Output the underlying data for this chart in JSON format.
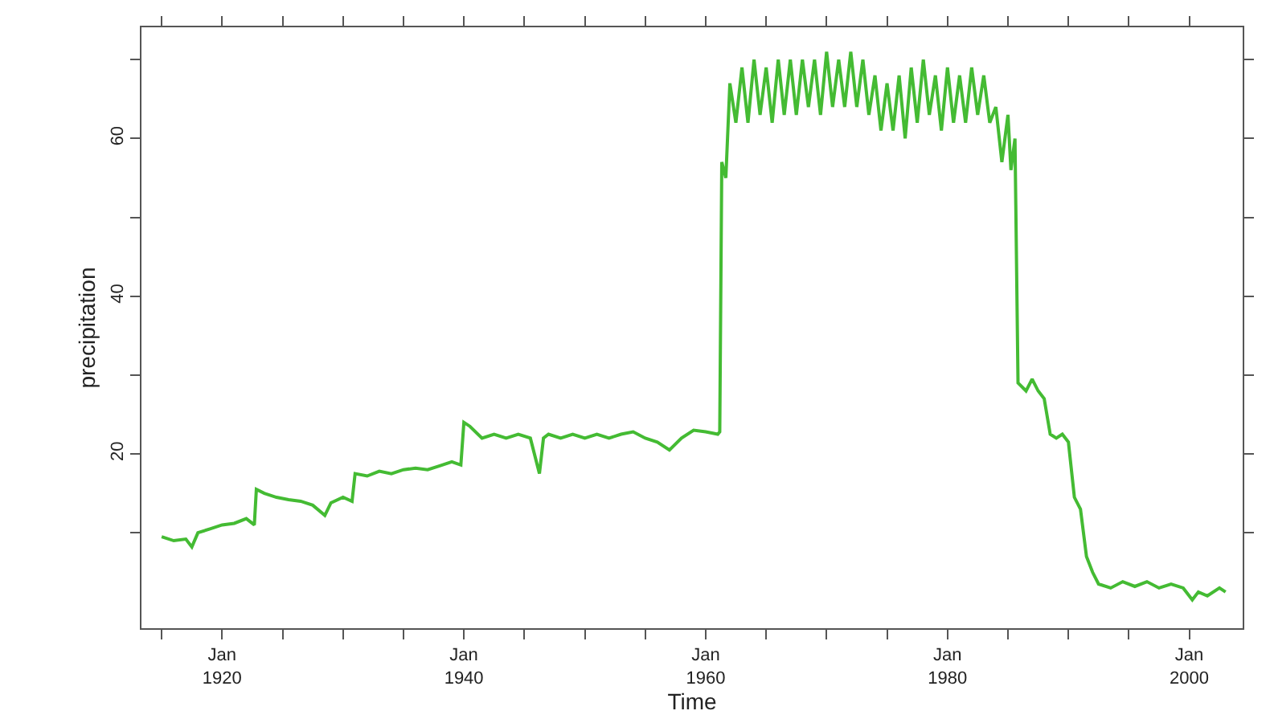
{
  "chart_data": {
    "type": "line",
    "xlabel": "Time",
    "ylabel": "precipitation",
    "xlim": [
      "1913-05",
      "2004-06"
    ],
    "ylim": [
      -2.1,
      74.1
    ],
    "xticks": [
      {
        "value": "1915-01",
        "label": null
      },
      {
        "value": "1920-01",
        "label": "Jan\n1920"
      },
      {
        "value": "1925-01",
        "label": null
      },
      {
        "value": "1930-01",
        "label": null
      },
      {
        "value": "1935-01",
        "label": null
      },
      {
        "value": "1940-01",
        "label": "Jan\n1940"
      },
      {
        "value": "1945-01",
        "label": null
      },
      {
        "value": "1950-01",
        "label": null
      },
      {
        "value": "1955-01",
        "label": null
      },
      {
        "value": "1960-01",
        "label": "Jan\n1960"
      },
      {
        "value": "1965-01",
        "label": null
      },
      {
        "value": "1970-01",
        "label": null
      },
      {
        "value": "1975-01",
        "label": null
      },
      {
        "value": "1980-01",
        "label": "Jan\n1980"
      },
      {
        "value": "1985-01",
        "label": null
      },
      {
        "value": "1990-01",
        "label": null
      },
      {
        "value": "1995-01",
        "label": null
      },
      {
        "value": "2000-01",
        "label": "Jan\n2000"
      }
    ],
    "yticks": [
      {
        "value": 10,
        "label": null
      },
      20,
      {
        "value": 30,
        "label": null
      },
      40,
      {
        "value": 50,
        "label": null
      },
      60,
      {
        "value": 70,
        "label": null
      }
    ],
    "marker": "none",
    "line_style": "solid",
    "series": [
      {
        "color": "#44bb33",
        "x": [
          "1915-01",
          "1916-01",
          "1917-01",
          "1917-07",
          "1918-01",
          "1919-01",
          "1920-01",
          "1921-01",
          "1922-01",
          "1922-09",
          "1922-11",
          "1923-07",
          "1924-07",
          "1925-07",
          "1926-07",
          "1927-07",
          "1928-07",
          "1929-01",
          "1930-01",
          "1930-10",
          "1931-01",
          "1932-01",
          "1933-01",
          "1934-01",
          "1935-01",
          "1936-01",
          "1937-01",
          "1938-01",
          "1939-01",
          "1939-10",
          "1940-01",
          "1940-07",
          "1941-07",
          "1942-07",
          "1943-07",
          "1944-07",
          "1945-07",
          "1946-04",
          "1946-08",
          "1947-01",
          "1948-01",
          "1949-01",
          "1950-01",
          "1951-01",
          "1952-01",
          "1953-01",
          "1954-01",
          "1955-01",
          "1956-01",
          "1957-01",
          "1958-01",
          "1959-01",
          "1960-01",
          "1961-01",
          "1961-03",
          "1961-05",
          "1961-09",
          "1962-01",
          "1962-07",
          "1963-01",
          "1963-07",
          "1964-01",
          "1964-07",
          "1965-01",
          "1965-07",
          "1966-01",
          "1966-07",
          "1967-01",
          "1967-07",
          "1968-01",
          "1968-07",
          "1969-01",
          "1969-07",
          "1970-01",
          "1970-07",
          "1971-01",
          "1971-07",
          "1972-01",
          "1972-07",
          "1973-01",
          "1973-07",
          "1974-01",
          "1974-07",
          "1975-01",
          "1975-07",
          "1976-01",
          "1976-07",
          "1977-01",
          "1977-07",
          "1978-01",
          "1978-07",
          "1979-01",
          "1979-07",
          "1980-01",
          "1980-07",
          "1981-01",
          "1981-07",
          "1982-01",
          "1982-07",
          "1983-01",
          "1983-07",
          "1984-01",
          "1984-07",
          "1985-01",
          "1985-04",
          "1985-08",
          "1985-11",
          "1986-07",
          "1987-01",
          "1987-07",
          "1988-01",
          "1988-07",
          "1989-01",
          "1989-07",
          "1990-01",
          "1990-07",
          "1991-01",
          "1991-07",
          "1992-01",
          "1992-07",
          "1993-07",
          "1994-07",
          "1995-07",
          "1996-07",
          "1997-07",
          "1998-07",
          "1999-07",
          "2000-04",
          "2000-10",
          "2001-07",
          "2002-07",
          "2003-01"
        ],
        "values": [
          9.5,
          9.0,
          9.2,
          8.2,
          10.0,
          10.5,
          11.0,
          11.2,
          11.8,
          11.0,
          15.5,
          15.0,
          14.5,
          14.2,
          14.0,
          13.5,
          12.2,
          13.8,
          14.5,
          14.0,
          17.5,
          17.2,
          17.8,
          17.5,
          18.0,
          18.2,
          18.0,
          18.5,
          19.0,
          18.6,
          24.0,
          23.5,
          22.0,
          22.5,
          22.0,
          22.5,
          22.0,
          17.5,
          22.0,
          22.5,
          22.0,
          22.5,
          22.0,
          22.5,
          22.0,
          22.5,
          22.8,
          22.0,
          21.5,
          20.5,
          22.0,
          23.0,
          22.8,
          22.5,
          22.8,
          57.0,
          55.0,
          67.0,
          62.0,
          69.0,
          62.0,
          70.0,
          63.0,
          69.0,
          62.0,
          70.0,
          63.0,
          70.0,
          63.0,
          70.0,
          64.0,
          70.0,
          63.0,
          71.0,
          64.0,
          70.0,
          64.0,
          71.0,
          64.0,
          70.0,
          63.0,
          68.0,
          61.0,
          67.0,
          61.0,
          68.0,
          60.0,
          69.0,
          62.0,
          70.0,
          63.0,
          68.0,
          61.0,
          69.0,
          62.0,
          68.0,
          62.0,
          69.0,
          63.0,
          68.0,
          62.0,
          64.0,
          57.0,
          63.0,
          56.0,
          60.0,
          29.0,
          28.0,
          29.5,
          28.0,
          27.0,
          22.5,
          22.0,
          22.5,
          21.5,
          14.5,
          13.0,
          7.0,
          5.0,
          3.5,
          3.0,
          3.8,
          3.2,
          3.8,
          3.0,
          3.5,
          3.0,
          1.5,
          2.5,
          2.0,
          3.0,
          2.5
        ]
      }
    ]
  }
}
